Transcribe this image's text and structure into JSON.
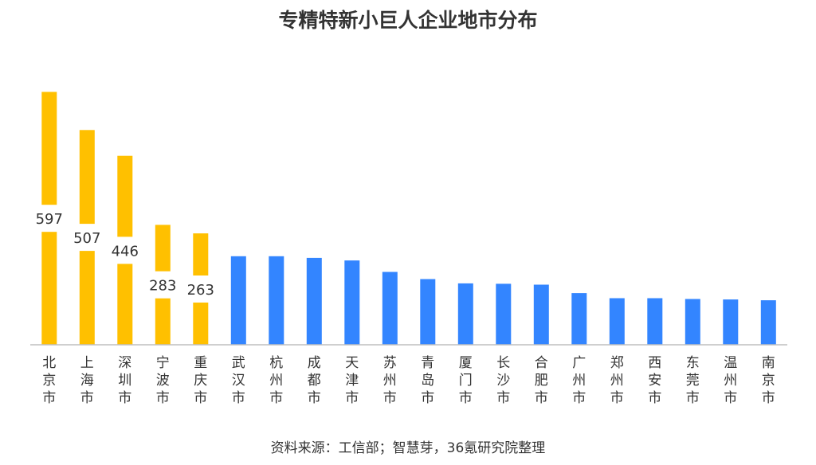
{
  "chart_data": {
    "type": "bar",
    "title": "专精特新小巨人企业地市分布",
    "source": "资料来源：工信部；智慧芽，36氪研究院整理",
    "categories": [
      "北京市",
      "上海市",
      "深圳市",
      "宁波市",
      "重庆市",
      "武汉市",
      "杭州市",
      "成都市",
      "天津市",
      "苏州市",
      "青岛市",
      "厦门市",
      "长沙市",
      "合肥市",
      "广州市",
      "郑州市",
      "西安市",
      "东莞市",
      "温州市",
      "南京市"
    ],
    "values": [
      597,
      507,
      446,
      283,
      263,
      209,
      209,
      205,
      199,
      172,
      155,
      145,
      144,
      142,
      122,
      110,
      110,
      108,
      107,
      105
    ],
    "labels": [
      "597",
      "507",
      "446",
      "283",
      "263",
      "",
      "",
      "",
      "",
      "",
      "",
      "",
      "",
      "",
      "",
      "",
      "",
      "",
      "",
      ""
    ],
    "highlight_count": 5,
    "colors": {
      "highlight": "#FFC000",
      "default": "#3385FF",
      "axis": "#BFBFBF",
      "text": "#333333"
    },
    "ylim": [
      0,
      600
    ],
    "xlabel": "",
    "ylabel": "",
    "grid": false,
    "legend": "none"
  }
}
